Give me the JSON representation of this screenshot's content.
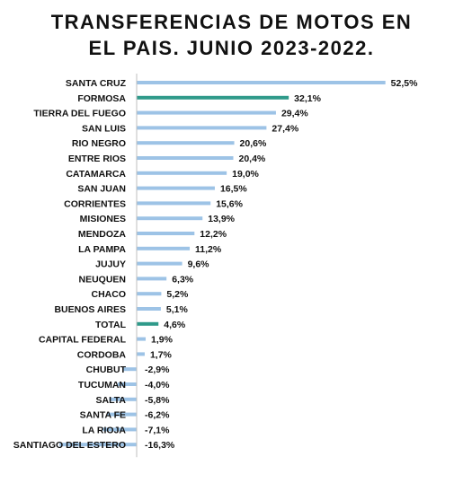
{
  "chart_data": {
    "type": "bar",
    "orientation": "horizontal",
    "title": [
      "TRANSFERENCIAS DE MOTOS EN",
      "EL PAIS. JUNIO 2023-2022."
    ],
    "unit_suffix": "%",
    "decimal_separator": ",",
    "categories": [
      "SANTA CRUZ",
      "FORMOSA",
      "TIERRA DEL FUEGO",
      "SAN LUIS",
      "RIO NEGRO",
      "ENTRE RIOS",
      "CATAMARCA",
      "SAN JUAN",
      "CORRIENTES",
      "MISIONES",
      "MENDOZA",
      "LA PAMPA",
      "JUJUY",
      "NEUQUEN",
      "CHACO",
      "BUENOS AIRES",
      "TOTAL",
      "CAPITAL FEDERAL",
      "CORDOBA",
      "CHUBUT",
      "TUCUMAN",
      "SALTA",
      "SANTA FE",
      "LA RIOJA",
      "SANTIAGO DEL ESTERO"
    ],
    "values": [
      52.5,
      32.1,
      29.4,
      27.4,
      20.6,
      20.4,
      19.0,
      16.5,
      15.6,
      13.9,
      12.2,
      11.2,
      9.6,
      6.3,
      5.2,
      5.1,
      4.6,
      1.9,
      1.7,
      -2.9,
      -4.0,
      -5.8,
      -6.2,
      -7.1,
      -16.3
    ],
    "highlighted": [
      "FORMOSA",
      "TOTAL"
    ],
    "colors": {
      "bar": "#9dc3e6",
      "highlight": "#2f9a8a",
      "axis": "#bfbfbf"
    },
    "xlim": [
      -16.3,
      52.5
    ],
    "grid": false,
    "legend": "none"
  }
}
